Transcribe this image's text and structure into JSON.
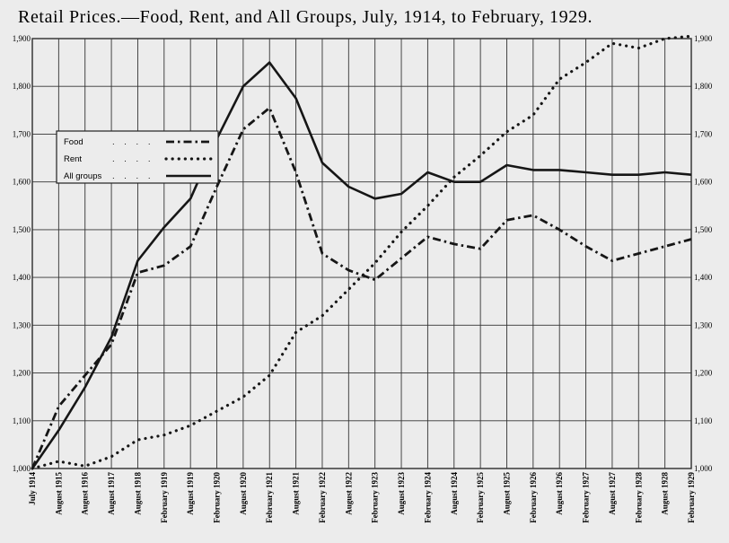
{
  "chart_data": {
    "type": "line",
    "title": "Retail Prices.—Food, Rent, and All Groups, July, 1914, to February, 1929.",
    "xlabel": "",
    "ylabel": "",
    "ylim": [
      1000,
      1900
    ],
    "y_ticks": [
      "1,000",
      "1,100",
      "1,200",
      "1,300",
      "1,400",
      "1,500",
      "1,600",
      "1,700",
      "1,800",
      "1,900"
    ],
    "categories": [
      "July 1914",
      "August 1915",
      "August 1916",
      "August 1917",
      "August 1918",
      "February 1919",
      "August 1919",
      "February 1920",
      "August 1920",
      "February 1921",
      "August 1921",
      "February 1922",
      "August 1922",
      "February 1923",
      "August 1923",
      "February 1924",
      "August 1924",
      "February 1925",
      "August 1925",
      "February 1926",
      "August 1926",
      "February 1927",
      "August 1927",
      "February 1928",
      "August 1928",
      "February 1929"
    ],
    "series": [
      {
        "name": "Food",
        "style": "dash-dot",
        "values": [
          1000,
          1130,
          1195,
          1260,
          1410,
          1425,
          1465,
          1590,
          1710,
          1755,
          1620,
          1450,
          1415,
          1395,
          1440,
          1485,
          1470,
          1460,
          1520,
          1530,
          1500,
          1465,
          1435,
          1450,
          1465,
          1480
        ]
      },
      {
        "name": "Rent",
        "style": "dotted",
        "values": [
          1000,
          1015,
          1005,
          1025,
          1060,
          1070,
          1090,
          1120,
          1150,
          1195,
          1285,
          1320,
          1375,
          1430,
          1495,
          1550,
          1610,
          1655,
          1705,
          1740,
          1815,
          1850,
          1890,
          1880,
          1900,
          1905
        ]
      },
      {
        "name": "All groups",
        "style": "solid",
        "values": [
          1000,
          1080,
          1170,
          1275,
          1435,
          1505,
          1565,
          1690,
          1800,
          1850,
          1775,
          1640,
          1590,
          1565,
          1575,
          1620,
          1600,
          1600,
          1635,
          1625,
          1625,
          1620,
          1615,
          1615,
          1620,
          1615
        ]
      }
    ],
    "legend": {
      "placement": "upper-left",
      "entries": [
        "Food",
        "Rent",
        "All groups"
      ]
    },
    "grid": true
  }
}
